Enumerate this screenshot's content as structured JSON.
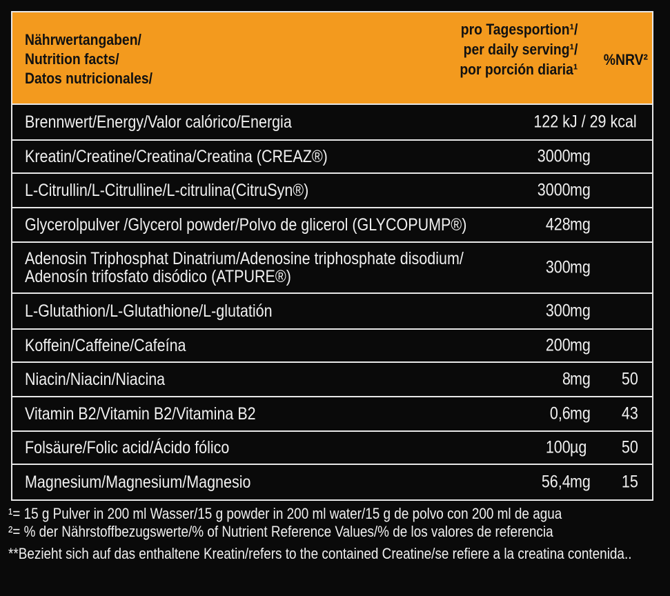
{
  "header": {
    "title_lines": [
      "Nährwertangaben/",
      "Nutrition facts/",
      "Datos nutricionales/"
    ],
    "serving_lines": [
      "pro Tagesportion¹/",
      "per daily serving¹/",
      "por porción diaria¹"
    ],
    "nrv": "%NRV²"
  },
  "rows": [
    {
      "name": "Brennwert/Energy/Valor calórico/Energia",
      "amount": "122 kJ  / 29  kcal",
      "unit": "",
      "nrv": ""
    },
    {
      "name": "Kreatin/Creatine/Creatina/Creatina (CREAZ®)",
      "amount": "3000",
      "unit": "mg",
      "nrv": ""
    },
    {
      "name": "L-Citrullin/L-Citrulline/L-citrulina(CitruSyn®)",
      "amount": "3000",
      "unit": "mg",
      "nrv": ""
    },
    {
      "name": "Glycerolpulver /Glycerol powder/Polvo de glicerol (GLYCOPUMP®)",
      "amount": "428",
      "unit": "mg",
      "nrv": ""
    },
    {
      "name_lines": [
        "Adenosin Triphosphat Dinatrium/Adenosine triphosphate disodium/",
        "Adenosín trifosfato disódico (ATPURE®)"
      ],
      "amount": "300",
      "unit": "mg",
      "nrv": ""
    },
    {
      "name": "L-Glutathion/L-Glutathione/L-glutatión",
      "amount": "300",
      "unit": "mg",
      "nrv": ""
    },
    {
      "name": "Koffein/Caffeine/Cafeína",
      "amount": "200",
      "unit": "mg",
      "nrv": ""
    },
    {
      "name": "Niacin/Niacin/Niacina",
      "amount": "8",
      "unit": "mg",
      "nrv": "50"
    },
    {
      "name": "Vitamin B2/Vitamin B2/Vitamina B2",
      "amount": "0,6",
      "unit": "mg",
      "nrv": "43"
    },
    {
      "name": "Folsäure/Folic acid/Ácido fólico",
      "amount": "100",
      "unit": "µg",
      "nrv": "50"
    },
    {
      "name": "Magnesium/Magnesium/Magnesio",
      "amount": "56,4",
      "unit": "mg",
      "nrv": "15"
    }
  ],
  "footnotes": {
    "f1": "¹= 15 g Pulver in 200 ml Wasser/15 g powder in 200 ml water/15 g de polvo con 200 ml de agua",
    "f2": "²= % der Nährstoffbezugswerte/% of Nutrient Reference Values/% de los valores de referencia",
    "f3": "**Bezieht sich auf das enthaltene Kreatin/refers to the contained Creatine/se refiere a la creatina contenida.."
  },
  "colors": {
    "header_bg": "#f39a1e",
    "background": "#0a0a0a",
    "text": "#f2f2f2",
    "rule": "#e8e8e8"
  }
}
